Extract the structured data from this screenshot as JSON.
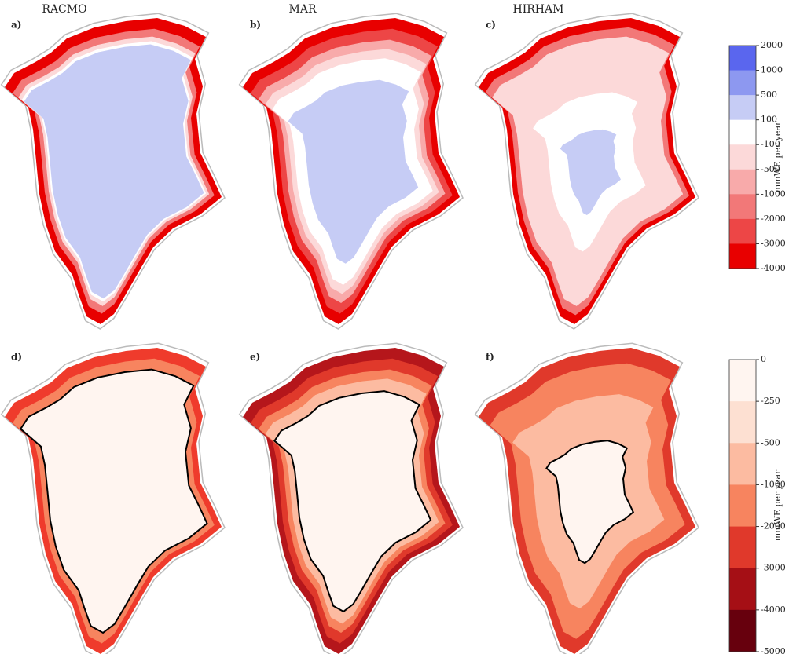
{
  "column_titles": [
    "RACMO",
    "MAR",
    "HIRHAM"
  ],
  "panels": [
    "a)",
    "b)",
    "c)",
    "d)",
    "e)",
    "f)"
  ],
  "colorbars": [
    {
      "label": "mmWE per year",
      "ticks": [
        2000,
        1000,
        500,
        100,
        -100,
        -500,
        -1000,
        -2000,
        -3000,
        -4000
      ],
      "colors": [
        "#5a66ee",
        "#8d98f0",
        "#c6ccf5",
        "#ffffff",
        "#fcd9d9",
        "#f8aaaa",
        "#f27878",
        "#ed4646",
        "#e80000"
      ]
    },
    {
      "label": "mmWE per year",
      "ticks": [
        0,
        -250,
        -500,
        -1000,
        -2000,
        -3000,
        -4000,
        -5000
      ],
      "colors": [
        "#fff5f0",
        "#fde0d2",
        "#fcbba1",
        "#f7845f",
        "#e0392b",
        "#a50f15",
        "#67000d"
      ]
    }
  ]
}
